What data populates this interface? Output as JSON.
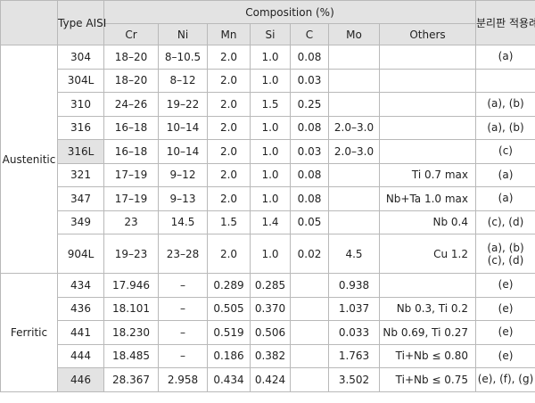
{
  "header": {
    "type_label": "Type AISI",
    "composition_label": "Composition (%)",
    "application_label": "분리판 적용례",
    "columns": [
      "Cr",
      "Ni",
      "Mn",
      "Si",
      "C",
      "Mo",
      "Others"
    ]
  },
  "groups": [
    {
      "name": "Austenitic",
      "rows": [
        {
          "type": "304",
          "cr": "18–20",
          "ni": "8–10.5",
          "mn": "2.0",
          "si": "1.0",
          "c": "0.08",
          "mo": "",
          "others": "",
          "app": "(a)"
        },
        {
          "type": "304L",
          "cr": "18–20",
          "ni": "8–12",
          "mn": "2.0",
          "si": "1.0",
          "c": "0.03",
          "mo": "",
          "others": "",
          "app": ""
        },
        {
          "type": "310",
          "cr": "24–26",
          "ni": "19–22",
          "mn": "2.0",
          "si": "1.5",
          "c": "0.25",
          "mo": "",
          "others": "",
          "app": "(a), (b)"
        },
        {
          "type": "316",
          "cr": "16–18",
          "ni": "10–14",
          "mn": "2.0",
          "si": "1.0",
          "c": "0.08",
          "mo": "2.0–3.0",
          "others": "",
          "app": "(a), (b)"
        },
        {
          "type": "316L",
          "cr": "16–18",
          "ni": "10–14",
          "mn": "2.0",
          "si": "1.0",
          "c": "0.03",
          "mo": "2.0–3.0",
          "others": "",
          "app": "(c)"
        },
        {
          "type": "321",
          "cr": "17–19",
          "ni": "9–12",
          "mn": "2.0",
          "si": "1.0",
          "c": "0.08",
          "mo": "",
          "others": "Ti 0.7 max",
          "app": "(a)"
        },
        {
          "type": "347",
          "cr": "17–19",
          "ni": "9–13",
          "mn": "2.0",
          "si": "1.0",
          "c": "0.08",
          "mo": "",
          "others": "Nb+Ta 1.0 max",
          "app": "(a)"
        },
        {
          "type": "349",
          "cr": "23",
          "ni": "14.5",
          "mn": "1.5",
          "si": "1.4",
          "c": "0.05",
          "mo": "",
          "others": "Nb 0.4",
          "app": "(c), (d)"
        },
        {
          "type": "904L",
          "cr": "19–23",
          "ni": "23–28",
          "mn": "2.0",
          "si": "1.0",
          "c": "0.02",
          "mo": "4.5",
          "others": "Cu 1.2",
          "app": "(a), (b)",
          "app2": "(c), (d)"
        }
      ]
    },
    {
      "name": "Ferritic",
      "rows": [
        {
          "type": "434",
          "cr": "17.946",
          "ni": "–",
          "mn": "0.289",
          "si": "0.285",
          "c": "",
          "mo": "0.938",
          "others": "",
          "app": "(e)"
        },
        {
          "type": "436",
          "cr": "18.101",
          "ni": "–",
          "mn": "0.505",
          "si": "0.370",
          "c": "",
          "mo": "1.037",
          "others": "Nb 0.3, Ti 0.2",
          "app": "(e)"
        },
        {
          "type": "441",
          "cr": "18.230",
          "ni": "–",
          "mn": "0.519",
          "si": "0.506",
          "c": "",
          "mo": "0.033",
          "others": "Nb 0.69, Ti 0.27",
          "app": "(e)"
        },
        {
          "type": "444",
          "cr": "18.485",
          "ni": "–",
          "mn": "0.186",
          "si": "0.382",
          "c": "",
          "mo": "1.763",
          "others": "Ti+Nb ≤ 0.80",
          "app": "(e)"
        },
        {
          "type": "446",
          "cr": "28.367",
          "ni": "2.958",
          "mn": "0.434",
          "si": "0.424",
          "c": "",
          "mo": "3.502",
          "others": "Ti+Nb ≤ 0.75",
          "app": "(e), (f), (g)"
        }
      ]
    }
  ]
}
